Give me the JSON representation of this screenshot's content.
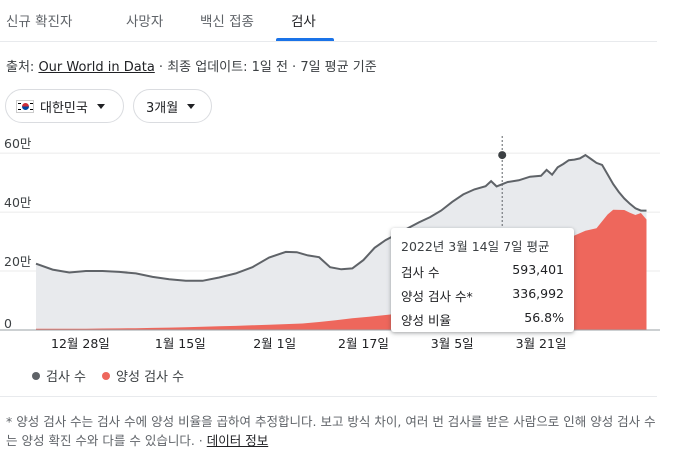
{
  "tabs": [
    {
      "label": "신규 확진자",
      "active": false
    },
    {
      "label": "사망자",
      "active": false
    },
    {
      "label": "백신 접종",
      "active": false
    },
    {
      "label": "검사",
      "active": true
    }
  ],
  "source": {
    "prefix": "출처: ",
    "link": "Our World in Data",
    "suffix": " · 최종 업데이트: 1일 전 · 7일 평균 기준"
  },
  "filters": {
    "country": "대한민국",
    "range": "3개월"
  },
  "tooltip": {
    "title": "2022년 3월 14일 7일 평균",
    "rows": [
      {
        "label": "검사 수",
        "value": "593,401"
      },
      {
        "label": "양성 검사 수*",
        "value": "336,992"
      },
      {
        "label": "양성 비율",
        "value": "56.8%"
      }
    ]
  },
  "legend": [
    {
      "label": "검사 수",
      "color": "#5f6368"
    },
    {
      "label": "양성 검사 수",
      "color": "#ee675c"
    }
  ],
  "footnote": {
    "text": "* 양성 검사 수는 검사 수에 양성 비율을 곱하여 추정합니다. 보고 방식 차이, 여러 번 검사를 받은 사람으로 인해 양성 검사 수는 양성 확진 수와 다를 수 있습니다.",
    "separator": " · ",
    "link": "데이터 정보"
  },
  "colors": {
    "tests_area": "#e8eaed",
    "tests_line": "#5f6368",
    "positive_area": "#ee675c",
    "accent": "#1a73e8"
  },
  "chart_data": {
    "type": "area",
    "x_start": "2021-12-20",
    "ylim": [
      0,
      650000
    ],
    "yticks": [
      {
        "value": 0,
        "label": "0"
      },
      {
        "value": 200000,
        "label": "20만"
      },
      {
        "value": 400000,
        "label": "40만"
      },
      {
        "value": 600000,
        "label": "60만"
      }
    ],
    "xticks": [
      {
        "date": "2021-12-28",
        "label": "12월 28일"
      },
      {
        "date": "2022-01-15",
        "label": "1월 15일"
      },
      {
        "date": "2022-02-01",
        "label": "2월 1일"
      },
      {
        "date": "2022-02-17",
        "label": "2월 17일"
      },
      {
        "date": "2022-03-05",
        "label": "3월 5일"
      },
      {
        "date": "2022-03-21",
        "label": "3월 21일"
      }
    ],
    "highlight": {
      "date": "2022-03-14",
      "tests": 593401,
      "positive": 336992,
      "positive_rate": "56.8%"
    },
    "series": [
      {
        "name": "검사 수",
        "values": [
          [
            0,
            225000
          ],
          [
            3,
            205000
          ],
          [
            6,
            195000
          ],
          [
            9,
            200000
          ],
          [
            12,
            200000
          ],
          [
            15,
            197000
          ],
          [
            18,
            192000
          ],
          [
            21,
            180000
          ],
          [
            24,
            172000
          ],
          [
            27,
            167000
          ],
          [
            30,
            167000
          ],
          [
            33,
            178000
          ],
          [
            36,
            192000
          ],
          [
            39,
            213000
          ],
          [
            42,
            246000
          ],
          [
            45,
            265000
          ],
          [
            47,
            264000
          ],
          [
            49,
            253000
          ],
          [
            51,
            247000
          ],
          [
            53,
            213000
          ],
          [
            55,
            206000
          ],
          [
            57,
            209000
          ],
          [
            59,
            237000
          ],
          [
            61,
            279000
          ],
          [
            63,
            305000
          ],
          [
            65,
            325000
          ],
          [
            67,
            345000
          ],
          [
            69,
            365000
          ],
          [
            71,
            383000
          ],
          [
            73,
            405000
          ],
          [
            75,
            435000
          ],
          [
            77,
            460000
          ],
          [
            79,
            477000
          ],
          [
            81,
            488000
          ],
          [
            82,
            505000
          ],
          [
            83,
            487000
          ],
          [
            85,
            502000
          ],
          [
            87,
            508000
          ],
          [
            89,
            520000
          ],
          [
            91,
            523000
          ],
          [
            92,
            543000
          ],
          [
            93,
            527000
          ],
          [
            94,
            552000
          ],
          [
            95,
            563000
          ],
          [
            96,
            576000
          ],
          [
            97,
            578000
          ],
          [
            98,
            582000
          ],
          [
            99,
            593401
          ],
          [
            100,
            580000
          ],
          [
            101,
            567000
          ],
          [
            102,
            560000
          ],
          [
            103,
            528000
          ],
          [
            104,
            495000
          ],
          [
            105,
            468000
          ],
          [
            106,
            446000
          ],
          [
            107,
            428000
          ],
          [
            108,
            413000
          ],
          [
            109,
            405000
          ],
          [
            110,
            405000
          ]
        ]
      },
      {
        "name": "양성 검사 수",
        "values": [
          [
            0,
            4000
          ],
          [
            3,
            4000
          ],
          [
            6,
            4000
          ],
          [
            9,
            4500
          ],
          [
            12,
            5000
          ],
          [
            15,
            5500
          ],
          [
            18,
            6000
          ],
          [
            21,
            7000
          ],
          [
            24,
            8000
          ],
          [
            27,
            9500
          ],
          [
            30,
            11000
          ],
          [
            33,
            12500
          ],
          [
            36,
            14000
          ],
          [
            39,
            16000
          ],
          [
            42,
            18000
          ],
          [
            45,
            20000
          ],
          [
            48,
            22000
          ],
          [
            51,
            27000
          ],
          [
            54,
            33000
          ],
          [
            57,
            40000
          ],
          [
            60,
            45000
          ],
          [
            63,
            51000
          ],
          [
            66,
            57000
          ],
          [
            69,
            68000
          ],
          [
            72,
            82000
          ],
          [
            75,
            105000
          ],
          [
            78,
            138000
          ],
          [
            81,
            172000
          ],
          [
            84,
            200000
          ],
          [
            87,
            232000
          ],
          [
            90,
            260000
          ],
          [
            93,
            288000
          ],
          [
            96,
            312000
          ],
          [
            99,
            336992
          ],
          [
            101,
            345000
          ],
          [
            103,
            392000
          ],
          [
            104,
            408000
          ],
          [
            106,
            407000
          ],
          [
            107,
            398000
          ],
          [
            108,
            390000
          ],
          [
            109,
            397000
          ],
          [
            110,
            375000
          ]
        ]
      }
    ]
  }
}
